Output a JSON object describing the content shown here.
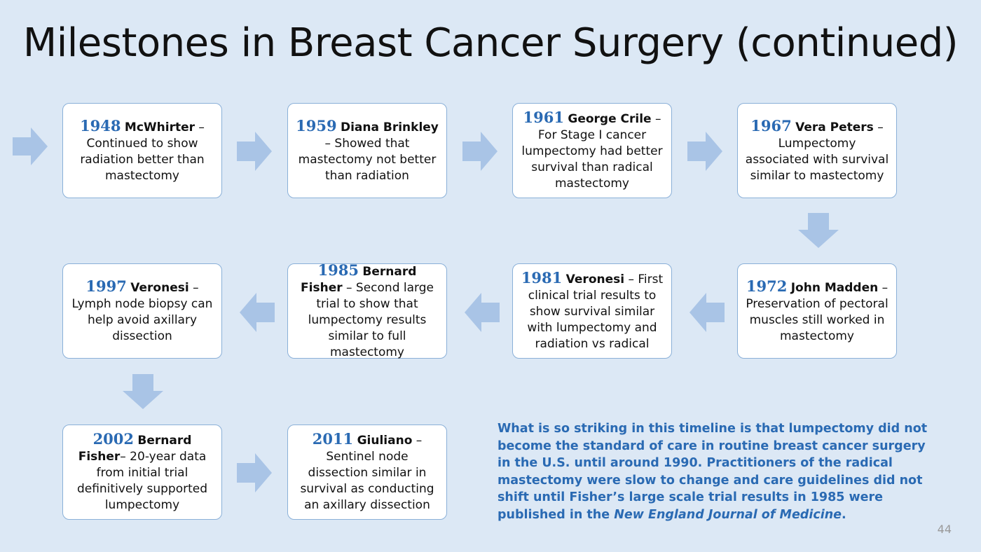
{
  "title": "Milestones in Breast Cancer Surgery (continued)",
  "milestones": [
    {
      "year": "1948",
      "name": "McWhirter",
      "text": " – Continued to show radiation better than mastectomy"
    },
    {
      "year": "1959",
      "name": "Diana Brinkley",
      "text": " – Showed that mastectomy not better than radiation"
    },
    {
      "year": "1961",
      "name": "George Crile",
      "text": " – For Stage I cancer lumpectomy had better survival than radical mastectomy"
    },
    {
      "year": "1967",
      "name": "Vera Peters",
      "text": " – Lumpectomy associated with survival similar to mastectomy"
    },
    {
      "year": "1972",
      "name": "John Madden",
      "text": " – Preservation of pectoral muscles still worked in mastectomy"
    },
    {
      "year": "1981",
      "name": "Veronesi",
      "text": " – First clinical trial results to show survival similar with lumpectomy and radiation vs radical"
    },
    {
      "year": "1985",
      "name": "Bernard Fisher",
      "text": " – Second large trial to show that lumpectomy results similar to full mastectomy"
    },
    {
      "year": "1997",
      "name": "Veronesi",
      "text": " – Lymph node biopsy can help avoid axillary dissection"
    },
    {
      "year": "2002",
      "name": "Bernard Fisher",
      "text": "– 20-year data from initial trial definitively supported lumpectomy"
    },
    {
      "year": "2011",
      "name": "Giuliano",
      "text": " – Sentinel node dissection similar in survival as conducting an axillary dissection"
    }
  ],
  "note": {
    "text": "What is so striking in this timeline is that lumpectomy did not become the standard of care in routine breast cancer surgery in the U.S. until around 1990. Practitioners of the radical mastectomy were slow to change and care guidelines did not shift until Fisher’s large scale trial results in 1985 were published in the ",
    "journal": "New England Journal of Medicine",
    "end": "."
  },
  "page_number": "44",
  "colors": {
    "background": "#dce8f5",
    "accent": "#2a6ab3",
    "arrow": "#a9c4e6",
    "box_border": "#8ab0d8"
  }
}
